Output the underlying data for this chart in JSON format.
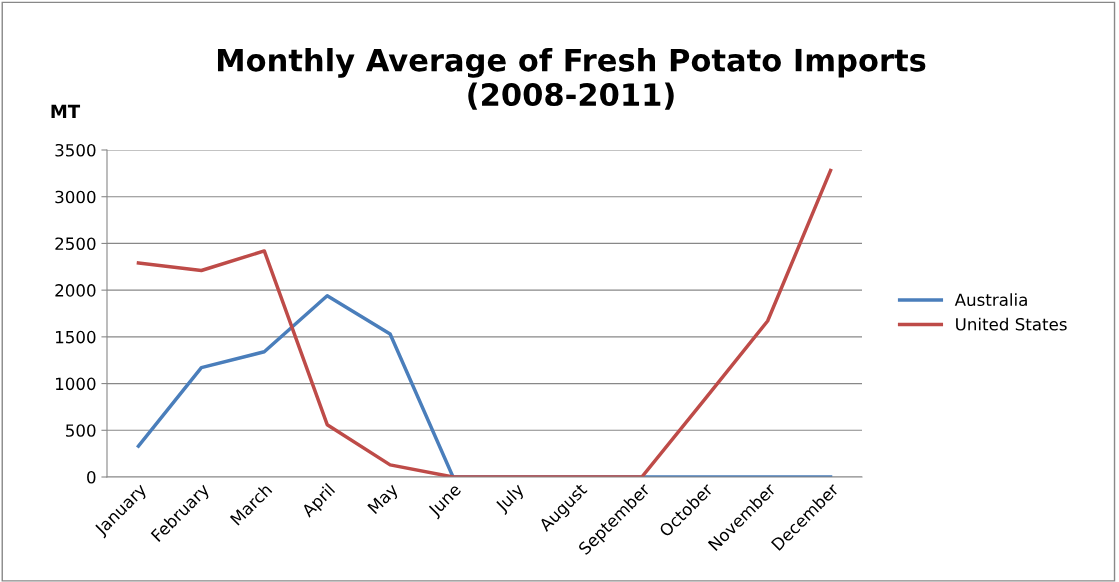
{
  "chart_data": {
    "type": "line",
    "title": "Monthly Average of Fresh Potato Imports\n(2008-2011)",
    "ylabel": "MT",
    "categories": [
      "January",
      "February",
      "March",
      "April",
      "May",
      "June",
      "July",
      "August",
      "September",
      "October",
      "November",
      "December"
    ],
    "series": [
      {
        "name": "Australia",
        "color": "#4a7ebb",
        "values": [
          330,
          1170,
          1340,
          1940,
          1530,
          0,
          0,
          0,
          0,
          0,
          0,
          0
        ]
      },
      {
        "name": "United States",
        "color": "#be4b48",
        "values": [
          2290,
          2210,
          2420,
          560,
          130,
          0,
          0,
          0,
          0,
          830,
          1670,
          3280
        ]
      }
    ],
    "ylim": [
      0,
      3500
    ],
    "yticks": [
      0,
      500,
      1000,
      1500,
      2000,
      2500,
      3000,
      3500
    ],
    "grid": "y",
    "legend": "right",
    "marker": "none",
    "line_style": "solid"
  }
}
